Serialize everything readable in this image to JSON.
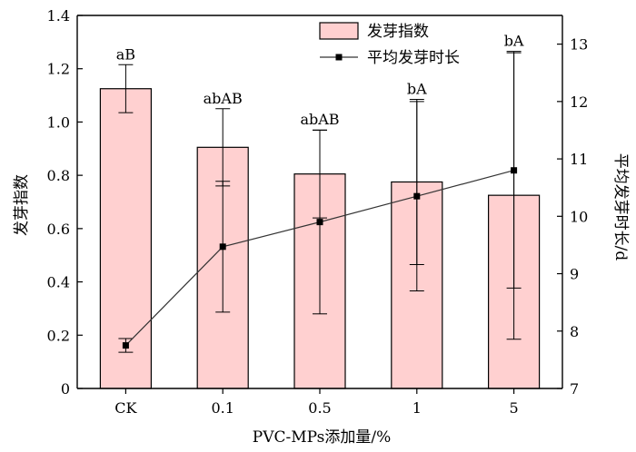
{
  "chart_data": {
    "type": "bar",
    "categories": [
      "CK",
      "0.1",
      "0.5",
      "1",
      "5"
    ],
    "xlabel": "PVC-MPs添加量/%",
    "ylabel": "发芽指数",
    "ylim": [
      0,
      1.4
    ],
    "y_ticks": [
      "0",
      "0.2",
      "0.4",
      "0.6",
      "0.8",
      "1.0",
      "1.2",
      "1.4"
    ],
    "ylabel_right": "平均发芽时长/d",
    "ylim_right": [
      7,
      13.5
    ],
    "y_ticks_right": [
      "7",
      "8",
      "9",
      "10",
      "11",
      "12",
      "13"
    ],
    "legend_position": "top-center",
    "series": [
      {
        "name": "发芽指数",
        "type": "bar",
        "axis": "left",
        "color": "#ffd0d0",
        "values": [
          1.125,
          0.905,
          0.805,
          0.775,
          0.725
        ],
        "error": [
          0.09,
          0.145,
          0.165,
          0.31,
          0.54
        ],
        "labels": [
          "aB",
          "abAB",
          "abAB",
          "bA",
          "bA"
        ]
      },
      {
        "name": "平均发芽时长",
        "type": "line",
        "axis": "right",
        "color": "#333333",
        "values": [
          7.75,
          9.47,
          9.9,
          10.35,
          10.8
        ],
        "error": [
          0.12,
          1.14,
          1.6,
          1.65,
          2.05
        ]
      }
    ]
  }
}
